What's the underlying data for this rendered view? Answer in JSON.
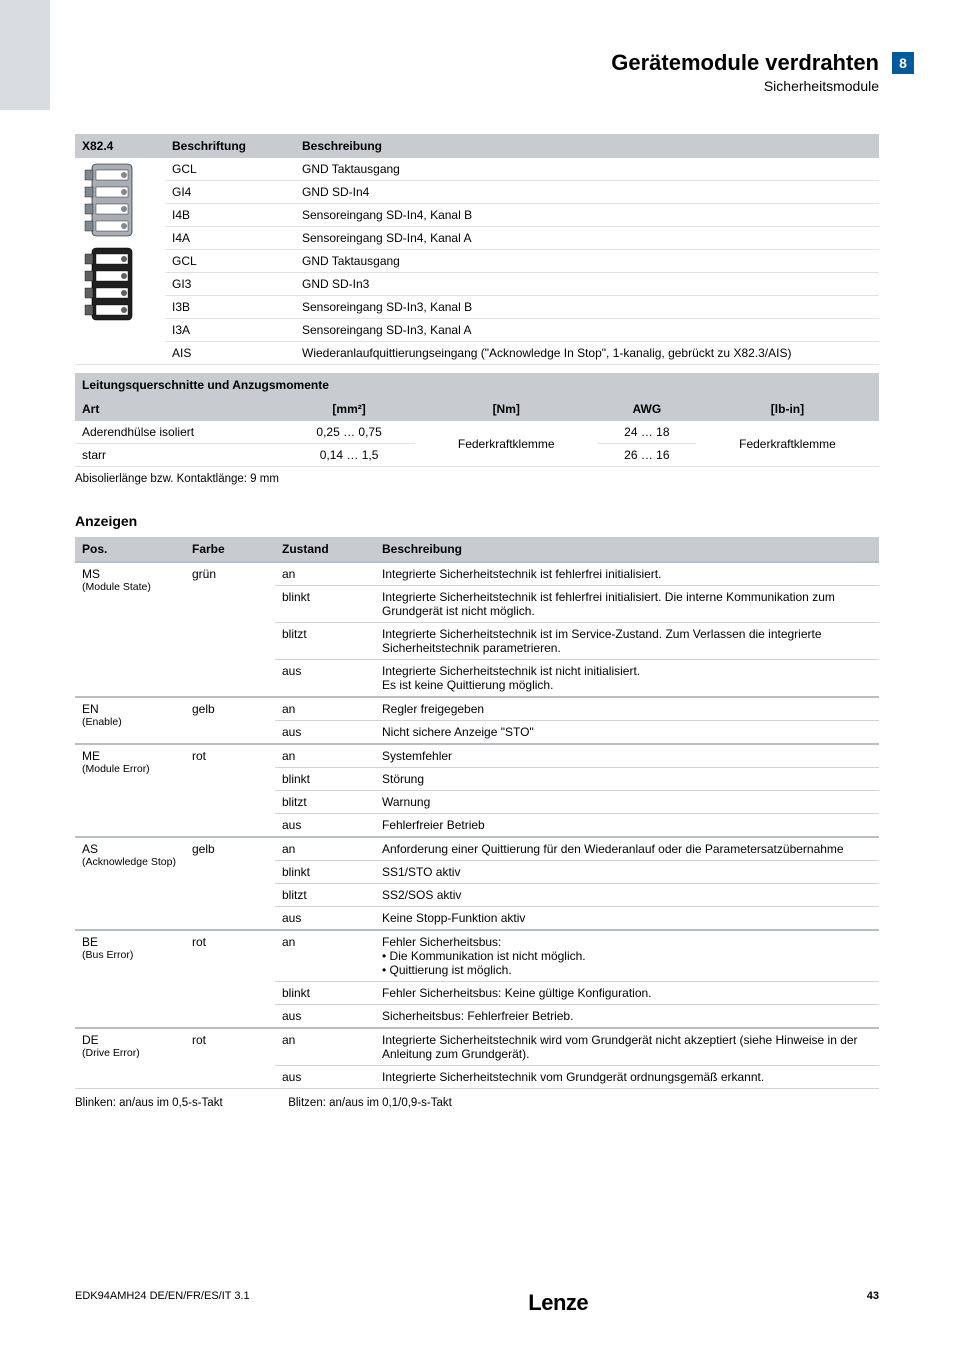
{
  "chapter_number": "8",
  "header": {
    "title": "Gerätemodule verdrahten",
    "subtitle": "Sicherheitsmodule"
  },
  "conn_table": {
    "headers": [
      "X82.4",
      "Beschriftung",
      "Beschreibung"
    ],
    "rows": [
      {
        "label": "GCL",
        "desc": "GND Taktausgang"
      },
      {
        "label": "GI4",
        "desc": "GND SD-In4"
      },
      {
        "label": "I4B",
        "desc": "Sensoreingang SD-In4, Kanal B"
      },
      {
        "label": "I4A",
        "desc": "Sensoreingang SD-In4, Kanal A"
      },
      {
        "label": "GCL",
        "desc": "GND Taktausgang"
      },
      {
        "label": "GI3",
        "desc": "GND SD-In3"
      },
      {
        "label": "I3B",
        "desc": "Sensoreingang SD-In3, Kanal B"
      },
      {
        "label": "I3A",
        "desc": "Sensoreingang SD-In3, Kanal A"
      },
      {
        "label": "AIS",
        "desc": "Wiederanlaufquittierungseingang (\"Acknowledge In Stop\", 1-kanalig, ge­brückt zu X82.3/AIS)"
      }
    ]
  },
  "leitungs": {
    "caption": "Leitungsquerschnitte und Anzugsmomente",
    "headers": [
      "Art",
      "[mm²]",
      "[Nm]",
      "AWG",
      "[lb-in]"
    ],
    "rows": [
      {
        "art": "Aderendhülse isoliert",
        "mm2": "0,25 … 0,75",
        "awg": "24 … 18"
      },
      {
        "art": "starr",
        "mm2": "0,14 … 1,5",
        "awg": "26 … 16"
      }
    ],
    "nm": "Federkraftklemme",
    "lbin": "Federkraftklemme",
    "note": "Abisolierlänge bzw. Kontaktlänge: 9 mm"
  },
  "anzeigen": {
    "title": "Anzeigen",
    "headers": [
      "Pos.",
      "Farbe",
      "Zustand",
      "Beschreibung"
    ],
    "groups": [
      {
        "pos": "MS",
        "pos_sub": "(Module State)",
        "farbe": "grün",
        "rows": [
          {
            "z": "an",
            "b": "Integrierte Sicherheitstechnik ist fehlerfrei initialisiert."
          },
          {
            "z": "blinkt",
            "b": "Integrierte Sicherheitstechnik ist fehlerfrei initialisiert. Die interne Kommunikation zum Grundgerät ist nicht möglich."
          },
          {
            "z": "blitzt",
            "b": "Integrierte Sicherheitstechnik ist im Service-Zustand. Zum Verlassen die integrierte Sicherheitstechnik parametrie­ren."
          },
          {
            "z": "aus",
            "b": "Integrierte Sicherheitstechnik ist nicht initialisiert.\nEs ist keine Quittierung möglich."
          }
        ]
      },
      {
        "pos": "EN",
        "pos_sub": "(Enable)",
        "farbe": "gelb",
        "rows": [
          {
            "z": "an",
            "b": "Regler freigegeben"
          },
          {
            "z": "aus",
            "b": "Nicht sichere Anzeige \"STO\""
          }
        ]
      },
      {
        "pos": "ME",
        "pos_sub": "(Module Error)",
        "farbe": "rot",
        "rows": [
          {
            "z": "an",
            "b": "Systemfehler"
          },
          {
            "z": "blinkt",
            "b": "Störung"
          },
          {
            "z": "blitzt",
            "b": "Warnung"
          },
          {
            "z": "aus",
            "b": "Fehlerfreier Betrieb"
          }
        ]
      },
      {
        "pos": "AS",
        "pos_sub": "(Acknowledge Stop)",
        "farbe": "gelb",
        "rows": [
          {
            "z": "an",
            "b": "Anforderung einer Quittierung für den Wiederanlauf oder die Parametersatzübernahme"
          },
          {
            "z": "blinkt",
            "b": "SS1/STO aktiv"
          },
          {
            "z": "blitzt",
            "b": "SS2/SOS aktiv"
          },
          {
            "z": "aus",
            "b": "Keine Stopp-Funktion aktiv"
          }
        ]
      },
      {
        "pos": "BE",
        "pos_sub": "(Bus Error)",
        "farbe": "rot",
        "rows": [
          {
            "z": "an",
            "b_html": "Fehler Sicherheitsbus:<ul class='bul'><li>Die Kommunikation ist nicht möglich.</li><li>Quittierung ist möglich.</li></ul>"
          },
          {
            "z": "blinkt",
            "b": "Fehler Sicherheitsbus: Keine gültige Konfiguration."
          },
          {
            "z": "aus",
            "b": "Sicherheitsbus: Fehlerfreier Betrieb."
          }
        ]
      },
      {
        "pos": "DE",
        "pos_sub": "(Drive Error)",
        "farbe": "rot",
        "rows": [
          {
            "z": "an",
            "b": "Integrierte Sicherheitstechnik wird vom Grundgerät nicht akzeptiert (siehe Hinweise in der Anleitung zum Grundgerät)."
          },
          {
            "z": "aus",
            "b": "Integrierte Sicherheitstechnik vom Grundgerät ordnungsge­mäß erkannt."
          }
        ]
      }
    ],
    "footnotes": [
      "Blinken: an/aus im 0,5-s-Takt",
      "Blitzen: an/aus im 0,1/0,9-s-Takt"
    ]
  },
  "footer": {
    "doc": "EDK94AMH24   DE/EN/FR/ES/IT   3.1",
    "logo": "Lenze",
    "page": "43"
  }
}
